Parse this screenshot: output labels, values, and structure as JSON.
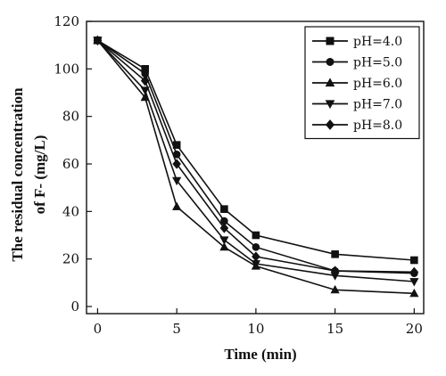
{
  "chart_data": {
    "type": "line",
    "xlabel": "Time (min)",
    "ylabel_line1": "The residual concentration",
    "ylabel_line2": "of F- (mg/L)",
    "xlim": [
      -0.7,
      20.6
    ],
    "ylim": [
      -3,
      120
    ],
    "xticks": [
      0,
      5,
      10,
      15,
      20
    ],
    "yticks": [
      0,
      20,
      40,
      60,
      80,
      100,
      120
    ],
    "grid": false,
    "legend_position": "top-right",
    "x": [
      0,
      3,
      5,
      8,
      10,
      15,
      20
    ],
    "series": [
      {
        "name": "pH=4.0",
        "marker": "square",
        "values": [
          112,
          100,
          68,
          41,
          30,
          22,
          19.5
        ]
      },
      {
        "name": "pH=5.0",
        "marker": "circle",
        "values": [
          112,
          98,
          64,
          36,
          25,
          15,
          14
        ]
      },
      {
        "name": "pH=6.0",
        "marker": "triangle-up",
        "values": [
          112,
          88,
          42,
          25,
          17,
          7,
          5.5
        ]
      },
      {
        "name": "pH=7.0",
        "marker": "triangle-down",
        "values": [
          112,
          91,
          53,
          28,
          18,
          13,
          10.5
        ]
      },
      {
        "name": "pH=8.0",
        "marker": "diamond",
        "values": [
          112,
          95,
          60,
          33,
          21,
          15,
          14.5
        ]
      }
    ]
  }
}
